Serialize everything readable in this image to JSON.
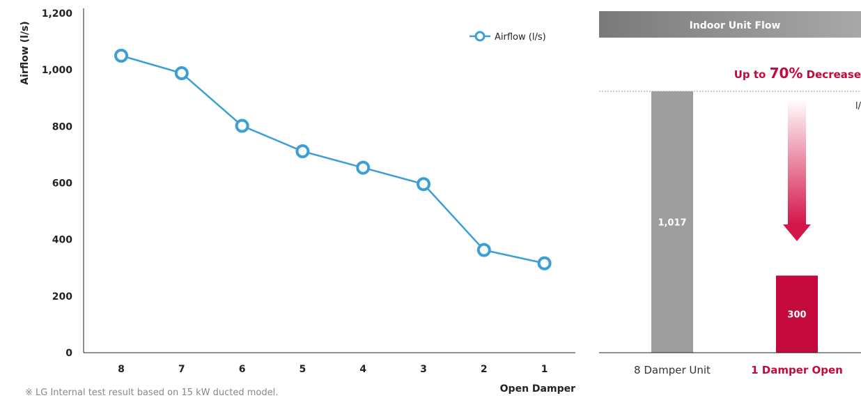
{
  "chart_data": [
    {
      "type": "line",
      "ylabel": "Airflow (l/s)",
      "xlabel": "Open Damper",
      "categories": [
        "8",
        "7",
        "6",
        "5",
        "4",
        "3",
        "2",
        "1"
      ],
      "yticks": [
        "0",
        "200",
        "400",
        "600",
        "800",
        "1,000",
        "1,200"
      ],
      "ylim": [
        0,
        1200
      ],
      "series": [
        {
          "name": "Airflow (l/s)",
          "values": [
            1050,
            988,
            802,
            712,
            654,
            596,
            363,
            316
          ]
        }
      ],
      "legend_position": "top-right",
      "grid": false,
      "colors": {
        "line": "#3b9fd6",
        "axis": "#222222"
      }
    },
    {
      "type": "bar",
      "title": "Indoor Unit Flow",
      "annotation": {
        "prefix": "Up to ",
        "value": "70%",
        "suffix": " Decrease"
      },
      "unit_label": "l/",
      "categories": [
        "8 Damper Unit",
        "1 Damper Open"
      ],
      "values": [
        1017,
        300
      ],
      "value_labels": [
        "1,017",
        "300"
      ],
      "colors": {
        "bar_1": "#9e9e9e",
        "bar_2": "#c4093c",
        "title_bar": "#8a8a8a",
        "accent": "#c4093c"
      }
    }
  ],
  "footnote": "※ LG Internal test result based on 15 kW ducted model."
}
